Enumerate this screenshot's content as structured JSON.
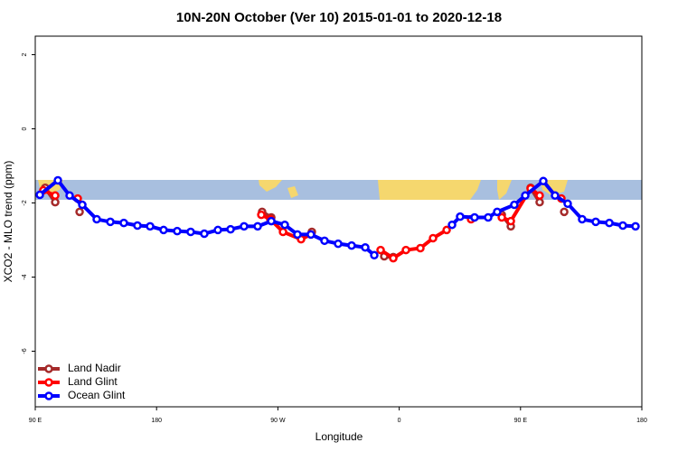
{
  "chart_data": {
    "type": "line",
    "title": "10N-20N October (Ver 10)   2015-01-01 to 2020-12-18",
    "x_label": "Longitude",
    "y_label": "XCO2 - MLO trend (ppm)",
    "xlim": [
      90,
      540
    ],
    "ylim": [
      -7.5,
      2.5
    ],
    "xticks": [
      {
        "value": 90,
        "label": "90 E"
      },
      180,
      {
        "value": 270,
        "label": "90 W"
      },
      {
        "value": 360,
        "label": "0"
      },
      {
        "value": 450,
        "label": "90 E"
      },
      {
        "value": 540,
        "label": "180"
      }
    ],
    "yticks": [
      -6,
      -4,
      -2,
      0,
      2
    ],
    "legend": "bottom-left",
    "series": [
      {
        "name": "Land Nadir",
        "color": "#a52a2a",
        "x": [
          97.4,
          104.8,
          114,
          122.9,
          190,
          258.3,
          265.1,
          280,
          295.2,
          320,
          348.9,
          355.6,
          400,
          436.1,
          442.8,
          450,
          457.5,
          464.2,
          473,
          482.4
        ],
        "values": [
          -1.59,
          -1.98,
          null,
          -2.24,
          null,
          -2.24,
          -2.39,
          null,
          -2.78,
          null,
          -3.44,
          -3.46,
          null,
          -2.32,
          -2.63,
          null,
          -1.59,
          -1.98,
          null,
          -2.24
        ]
      },
      {
        "name": "Land Glint",
        "color": "#ff0000",
        "x": [
          96.0,
          104.8,
          113,
          121.5,
          190,
          257.7,
          264.4,
          273.8,
          287.2,
          294.5,
          320,
          346.2,
          355.6,
          365.0,
          375.7,
          385.1,
          395.2,
          404,
          413.3,
          425,
          436.1,
          442.8,
          457.5,
          464.2,
          472,
          480.3
        ],
        "values": [
          -1.66,
          -1.8,
          null,
          -1.88,
          null,
          -2.32,
          -2.44,
          -2.78,
          -2.98,
          -2.85,
          null,
          -3.27,
          -3.49,
          -3.27,
          -3.22,
          -2.95,
          -2.73,
          null,
          -2.44,
          null,
          -2.39,
          -2.49,
          -1.61,
          -1.8,
          null,
          -1.88
        ]
      },
      {
        "name": "Ocean Glint",
        "color": "#0000ff",
        "x": [
          93.4,
          106.8,
          115.5,
          124.9,
          135.6,
          145.7,
          155.7,
          165.8,
          175.2,
          185.2,
          195.3,
          205.3,
          215.4,
          225.5,
          234.9,
          244.9,
          255.0,
          265.1,
          275.1,
          284.5,
          294.5,
          304.6,
          314.7,
          324.7,
          334.8,
          341.5,
          370,
          399.2,
          405.2,
          415.9,
          426.0,
          432.7,
          445.4,
          453.5,
          466.9,
          475.6,
          485.0,
          495.7,
          505.8,
          515.9,
          525.9,
          535.3
        ],
        "values": [
          -1.78,
          -1.39,
          -1.8,
          -2.05,
          -2.44,
          -2.51,
          -2.54,
          -2.61,
          -2.63,
          -2.73,
          -2.76,
          -2.78,
          -2.83,
          -2.73,
          -2.71,
          -2.63,
          -2.63,
          -2.49,
          -2.59,
          -2.85,
          -2.85,
          -3.02,
          -3.1,
          -3.15,
          -3.2,
          -3.41,
          null,
          -2.59,
          -2.37,
          -2.39,
          -2.39,
          -2.24,
          -2.05,
          -1.8,
          -1.41,
          -1.8,
          -2.02,
          -2.44,
          -2.51,
          -2.54,
          -2.61,
          -2.63
        ]
      }
    ]
  }
}
